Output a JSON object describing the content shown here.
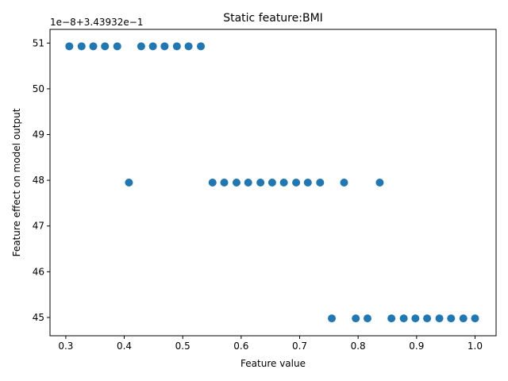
{
  "chart_data": {
    "type": "scatter",
    "title": "Static feature:BMI",
    "xlabel": "Feature value",
    "ylabel": "Feature effect on model output",
    "y_offset_label": "1e−8+3.43932e−1",
    "xlim": [
      0.273,
      1.036
    ],
    "ylim": [
      44.6,
      51.3
    ],
    "x_ticks": [
      0.3,
      0.4,
      0.5,
      0.6,
      0.7,
      0.8,
      0.9,
      1.0
    ],
    "x_tick_labels": [
      "0.3",
      "0.4",
      "0.5",
      "0.6",
      "0.7",
      "0.8",
      "0.9",
      "1.0"
    ],
    "y_ticks": [
      45,
      46,
      47,
      48,
      49,
      50,
      51
    ],
    "y_tick_labels": [
      "45",
      "46",
      "47",
      "48",
      "49",
      "50",
      "51"
    ],
    "marker_color": "#1f77b4",
    "grid": false,
    "legend": "none",
    "series": [
      {
        "x": [
          0.306,
          0.327,
          0.347,
          0.367,
          0.388,
          0.429,
          0.449,
          0.469,
          0.49,
          0.51,
          0.531,
          0.408,
          0.551,
          0.571,
          0.592,
          0.612,
          0.633,
          0.653,
          0.673,
          0.694,
          0.714,
          0.735,
          0.776,
          0.837,
          0.755,
          0.796,
          0.816,
          0.857,
          0.878,
          0.898,
          0.918,
          0.939,
          0.959,
          0.98,
          1.0
        ],
        "y": [
          50.93,
          50.93,
          50.93,
          50.93,
          50.93,
          50.93,
          50.93,
          50.93,
          50.93,
          50.93,
          50.93,
          47.95,
          47.95,
          47.95,
          47.95,
          47.95,
          47.95,
          47.95,
          47.95,
          47.95,
          47.95,
          47.95,
          47.95,
          47.95,
          44.98,
          44.98,
          44.98,
          44.98,
          44.98,
          44.98,
          44.98,
          44.98,
          44.98,
          44.98,
          44.98
        ]
      }
    ]
  }
}
